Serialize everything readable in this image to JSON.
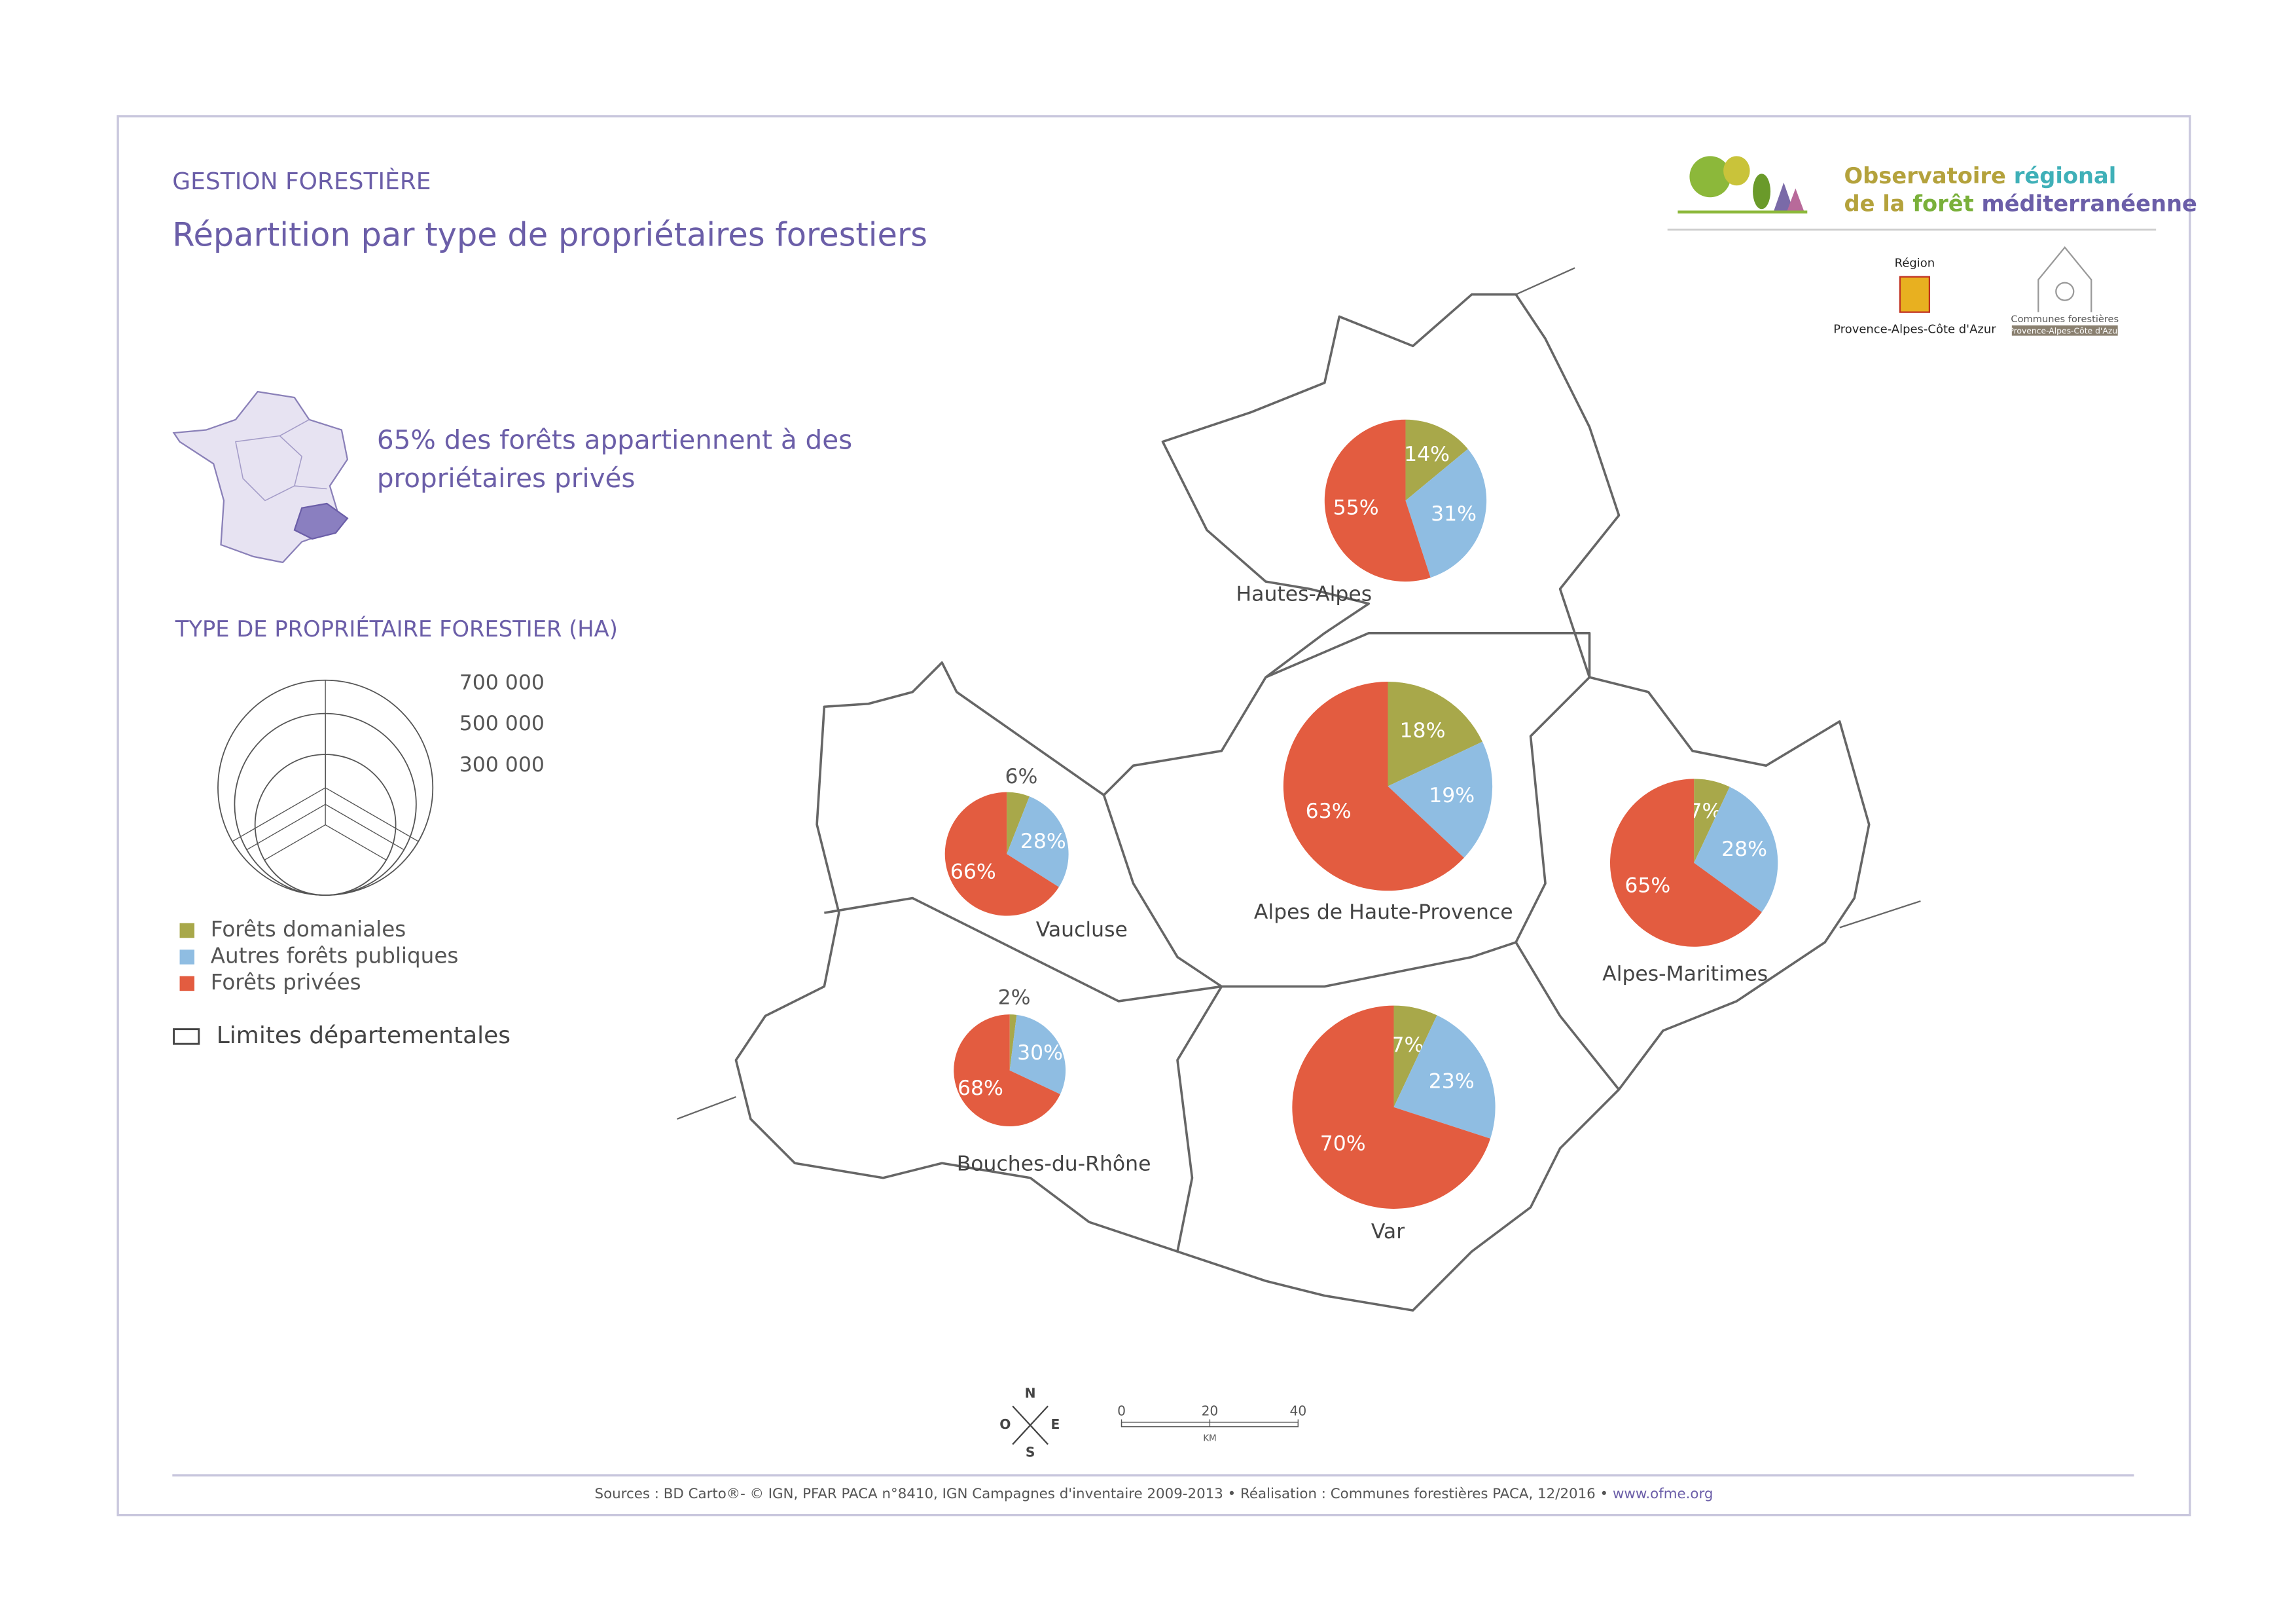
{
  "header": {
    "category": "GESTION FORESTIÈRE",
    "title": "Répartition par type de propriétaires forestiers"
  },
  "logo": {
    "line1": [
      "Observatoire",
      "régional"
    ],
    "line2": [
      "de la",
      "forêt",
      "méditerranéenne"
    ]
  },
  "partners": {
    "region_label": "Région",
    "region_name": "Provence-Alpes-Côte d'Azur",
    "communes": "Communes forestières",
    "communes_region": "Provence-Alpes-Côte d'Azur"
  },
  "highlight": [
    "65% des forêts appartiennent à des",
    "propriétaires privés"
  ],
  "size_legend": {
    "title": "TYPE DE PROPRIÉTAIRE FORESTIER (HA)",
    "sizes": [
      {
        "value": 700000,
        "label": "700 000"
      },
      {
        "value": 500000,
        "label": "500 000"
      },
      {
        "value": 300000,
        "label": "300 000"
      }
    ]
  },
  "legend": {
    "categories": [
      {
        "name": "Forêts domaniales",
        "color": "#a8a84a"
      },
      {
        "name": "Autres forêts publiques",
        "color": "#8fbde2"
      },
      {
        "name": "Forêts privées",
        "color": "#e35c40"
      }
    ],
    "boundary": "Limites départementales"
  },
  "departments": [
    {
      "name": "Hautes-Alpes",
      "values": [
        14,
        31,
        55
      ],
      "value_labels": [
        "14%",
        "31%",
        "55%"
      ]
    },
    {
      "name": "Alpes de Haute-Provence",
      "values": [
        18,
        19,
        63
      ],
      "value_labels": [
        "18%",
        "19%",
        "63%"
      ]
    },
    {
      "name": "Vaucluse",
      "values": [
        6,
        28,
        66
      ],
      "value_labels": [
        "6%",
        "28%",
        "66%"
      ]
    },
    {
      "name": "Alpes-Maritimes",
      "values": [
        7,
        28,
        65
      ],
      "value_labels": [
        "7%",
        "28%",
        "65%"
      ]
    },
    {
      "name": "Bouches-du-Rhône",
      "values": [
        2,
        30,
        68
      ],
      "value_labels": [
        "2%",
        "30%",
        "68%"
      ]
    },
    {
      "name": "Var",
      "values": [
        7,
        23,
        70
      ],
      "value_labels": [
        "7%",
        "23%",
        "70%"
      ]
    }
  ],
  "compass": [
    "N",
    "O",
    "E",
    "S"
  ],
  "scale": {
    "ticks": [
      0,
      20,
      40
    ],
    "unit": "KM"
  },
  "footer": {
    "sources": "Sources : BD Carto®- © IGN, PFAR PACA n°8410,  IGN Campagnes d'inventaire 2009-2013 • Réalisation : Communes forestières PACA, 12/2016 •",
    "url": "www.ofme.org"
  }
}
